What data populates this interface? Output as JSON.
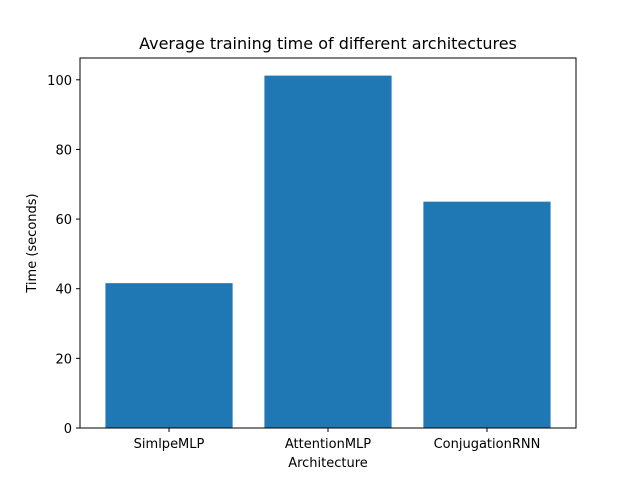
{
  "chart_data": {
    "type": "bar",
    "title": "Average training time of different architectures",
    "xlabel": "Architecture",
    "ylabel": "Time (seconds)",
    "categories": [
      "SimlpeMLP",
      "AttentionMLP",
      "ConjugationRNN"
    ],
    "values": [
      41.6,
      101.2,
      65.0
    ],
    "ylim": [
      0,
      106.26
    ],
    "yticks": [
      0,
      20,
      40,
      60,
      80,
      100
    ],
    "bar_color": "#1f77b4",
    "grid": false,
    "legend": false
  }
}
